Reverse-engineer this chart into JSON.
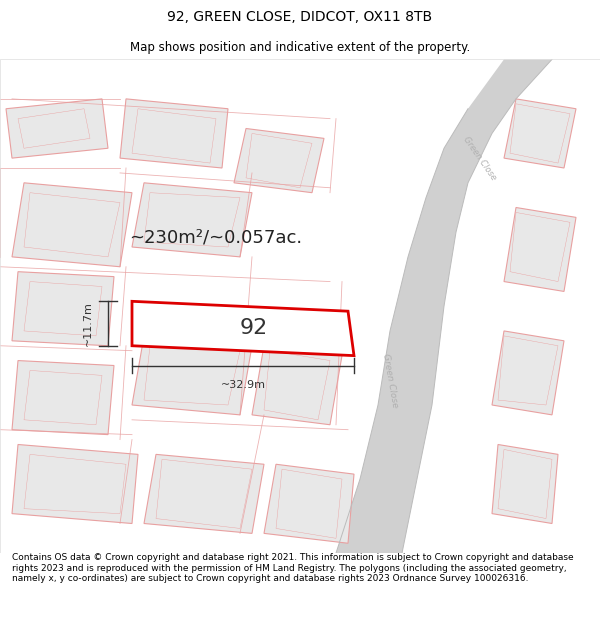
{
  "title": "92, GREEN CLOSE, DIDCOT, OX11 8TB",
  "subtitle": "Map shows position and indicative extent of the property.",
  "footer": "Contains OS data © Crown copyright and database right 2021. This information is subject to Crown copyright and database rights 2023 and is reproduced with the permission of HM Land Registry. The polygons (including the associated geometry, namely x, y co-ordinates) are subject to Crown copyright and database rights 2023 Ordnance Survey 100026316.",
  "area_text": "~230m²/~0.057ac.",
  "width_label": "~32.9m",
  "height_label": "~11.7m",
  "property_number": "92",
  "bg_color": "#ffffff",
  "map_bg": "#ffffff",
  "plot_fill": "#e8e8e8",
  "plot_edge": "#e8a0a0",
  "plot_lw": 0.8,
  "highlight_fill": "#ffffff",
  "highlight_edge": "#dd0000",
  "highlight_lw": 2.0,
  "road_fill": "#d0d0d0",
  "road_edge": "#bbbbbb",
  "road_line_color": "#cccccc",
  "street_label_color": "#aaaaaa",
  "dim_color": "#333333",
  "title_fontsize": 10,
  "subtitle_fontsize": 8.5,
  "footer_fontsize": 6.5,
  "area_fontsize": 13,
  "num_fontsize": 16,
  "dim_fontsize": 8
}
